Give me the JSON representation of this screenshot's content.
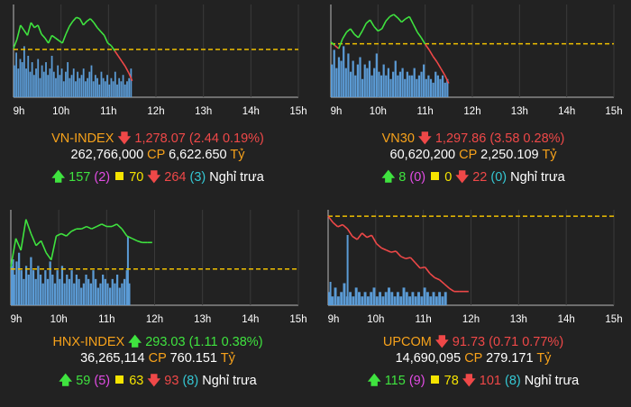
{
  "time_ticks": [
    "9h",
    "10h",
    "11h",
    "12h",
    "13h",
    "14h",
    "15h"
  ],
  "colors": {
    "background": "#222222",
    "index_up": "#3fe33f",
    "index_down": "#ef4848",
    "reference_line": "#f0c000",
    "volume": "#5b9bd5",
    "name": "#f7a21b"
  },
  "panels": [
    {
      "id": "vnindex",
      "name": "VN-INDEX",
      "direction": "down",
      "value": "1,278.07",
      "change": "(2.44 0.19%)",
      "volume": "262,766,000",
      "cp_label": "CP",
      "cp_value": "6,622.650",
      "unit": "Tỷ",
      "up_count": "157",
      "ceiling_count": "(2)",
      "unchanged_count": "70",
      "down_count": "264",
      "floor_count": "(3)",
      "status": "Nghỉ trưa",
      "chart_data": {
        "type": "line",
        "x_range": [
          "9:00",
          "15:00"
        ],
        "reference": 1280.51,
        "ylim": [
          1276.8,
          1284.0
        ],
        "series": [
          {
            "values": [
              1280.6,
              1281.3,
              1282.4,
              1282.0,
              1281.6,
              1282.6,
              1282.2,
              1282.4,
              1281.7,
              1281.4,
              1281.0,
              1281.6,
              1281.4,
              1281.2,
              1281.0,
              1281.7,
              1282.3,
              1282.7,
              1283.0,
              1282.9,
              1282.4,
              1282.7,
              1282.9,
              1282.6,
              1282.2,
              1281.9,
              1281.6,
              1281.0,
              1280.8,
              1280.4,
              1280.0,
              1279.6,
              1279.2,
              1278.7,
              1278.07
            ]
          }
        ],
        "volume_bars": [
          10,
          14,
          9,
          12,
          11,
          16,
          9,
          13,
          8,
          11,
          7,
          9,
          12,
          6,
          10,
          8,
          11,
          7,
          9,
          13,
          8,
          6,
          10,
          7,
          9,
          5,
          8,
          11,
          6,
          7,
          9,
          5,
          8,
          6,
          7,
          9,
          5,
          6,
          8,
          10,
          5,
          7,
          6,
          4,
          8,
          6,
          5,
          7,
          4,
          6,
          5,
          8,
          4,
          6,
          5,
          7,
          4,
          5,
          6,
          9
        ]
      }
    },
    {
      "id": "vn30",
      "name": "VN30",
      "direction": "down",
      "value": "1,297.86",
      "change": "(3.58 0.28%)",
      "volume": "60,620,200",
      "cp_label": "CP",
      "cp_value": "2,250.109",
      "unit": "Tỷ",
      "up_count": "8",
      "ceiling_count": "(0)",
      "unchanged_count": "0",
      "down_count": "22",
      "floor_count": "(0)",
      "status": "Nghỉ trưa",
      "chart_data": {
        "type": "line",
        "x_range": [
          "9:00",
          "15:00"
        ],
        "reference": 1301.44,
        "ylim": [
          1296.6,
          1305.0
        ],
        "series": [
          {
            "values": [
              1301.6,
              1301.3,
              1301.0,
              1301.9,
              1302.5,
              1302.8,
              1302.3,
              1302.0,
              1302.6,
              1303.3,
              1303.6,
              1303.0,
              1302.6,
              1302.8,
              1303.5,
              1303.9,
              1304.1,
              1303.8,
              1303.4,
              1303.7,
              1303.9,
              1303.2,
              1302.5,
              1302.0,
              1301.4,
              1300.9,
              1300.3,
              1299.8,
              1299.2,
              1298.6,
              1297.86
            ]
          }
        ],
        "volume_bars": [
          9,
          13,
          8,
          11,
          10,
          14,
          8,
          12,
          7,
          10,
          6,
          9,
          11,
          5,
          9,
          8,
          10,
          6,
          8,
          12,
          7,
          6,
          9,
          6,
          8,
          5,
          7,
          10,
          6,
          7,
          8,
          5,
          7,
          6,
          6,
          8,
          5,
          6,
          7,
          9,
          5,
          6,
          5,
          4,
          7,
          6,
          5,
          6,
          4,
          5
        ]
      }
    },
    {
      "id": "hnxindex",
      "name": "HNX-INDEX",
      "direction": "up",
      "value": "293.03",
      "change": "(1.11 0.38%)",
      "volume": "36,265,114",
      "cp_label": "CP",
      "cp_value": "760.151",
      "unit": "Tỷ",
      "up_count": "59",
      "ceiling_count": "(5)",
      "unchanged_count": "63",
      "down_count": "93",
      "floor_count": "(8)",
      "status": "Nghỉ trưa",
      "chart_data": {
        "type": "line",
        "x_range": [
          "9:00",
          "15:00"
        ],
        "reference": 291.92,
        "ylim": [
          290.4,
          294.4
        ],
        "series": [
          {
            "values": [
              292.0,
              293.2,
              292.7,
              294.0,
              293.4,
              292.9,
              293.1,
              292.6,
              292.3,
              293.3,
              293.4,
              293.3,
              293.5,
              293.6,
              293.6,
              293.7,
              293.6,
              293.7,
              293.8,
              293.7,
              293.7,
              293.8,
              293.6,
              293.3,
              293.2,
              293.1,
              293.03,
              293.03,
              293.03
            ]
          }
        ],
        "volume_bars": [
          9,
          7,
          10,
          12,
          8,
          6,
          9,
          7,
          11,
          8,
          6,
          9,
          7,
          5,
          8,
          6,
          10,
          7,
          5,
          8,
          6,
          9,
          5,
          7,
          6,
          8,
          5,
          7,
          6,
          4,
          5,
          7,
          6,
          5,
          8,
          6,
          4,
          5,
          7,
          6,
          5,
          4,
          6,
          5,
          7,
          4,
          5,
          6,
          8,
          5
        ]
      }
    },
    {
      "id": "upcom",
      "name": "UPCOM",
      "direction": "down",
      "value": "91.73",
      "change": "(0.71 0.77%)",
      "volume": "14,690,095",
      "cp_label": "CP",
      "cp_value": "279.171",
      "unit": "Tỷ",
      "up_count": "115",
      "ceiling_count": "(9)",
      "unchanged_count": "78",
      "down_count": "101",
      "floor_count": "(8)",
      "status": "Nghỉ trưa",
      "chart_data": {
        "type": "line",
        "x_range": [
          "9:00",
          "15:00"
        ],
        "reference": 92.44,
        "ylim": [
          91.6,
          92.5
        ],
        "series": [
          {
            "values": [
              92.44,
              92.38,
              92.34,
              92.36,
              92.32,
              92.25,
              92.22,
              92.28,
              92.24,
              92.26,
              92.18,
              92.14,
              92.12,
              92.1,
              92.11,
              92.06,
              92.04,
              92.05,
              92.0,
              91.95,
              91.96,
              91.9,
              91.86,
              91.84,
              91.8,
              91.76,
              91.73,
              91.73,
              91.73,
              91.73
            ]
          }
        ],
        "volume_bars": [
          3,
          2,
          4,
          2,
          3,
          5,
          2,
          3,
          2,
          4,
          3,
          2,
          3,
          2,
          3,
          4,
          2,
          3,
          2,
          3,
          4,
          3,
          2,
          3,
          2,
          4,
          3,
          2,
          3,
          2,
          3,
          2,
          4,
          3,
          2,
          3,
          2,
          3,
          2,
          3
        ]
      }
    }
  ]
}
